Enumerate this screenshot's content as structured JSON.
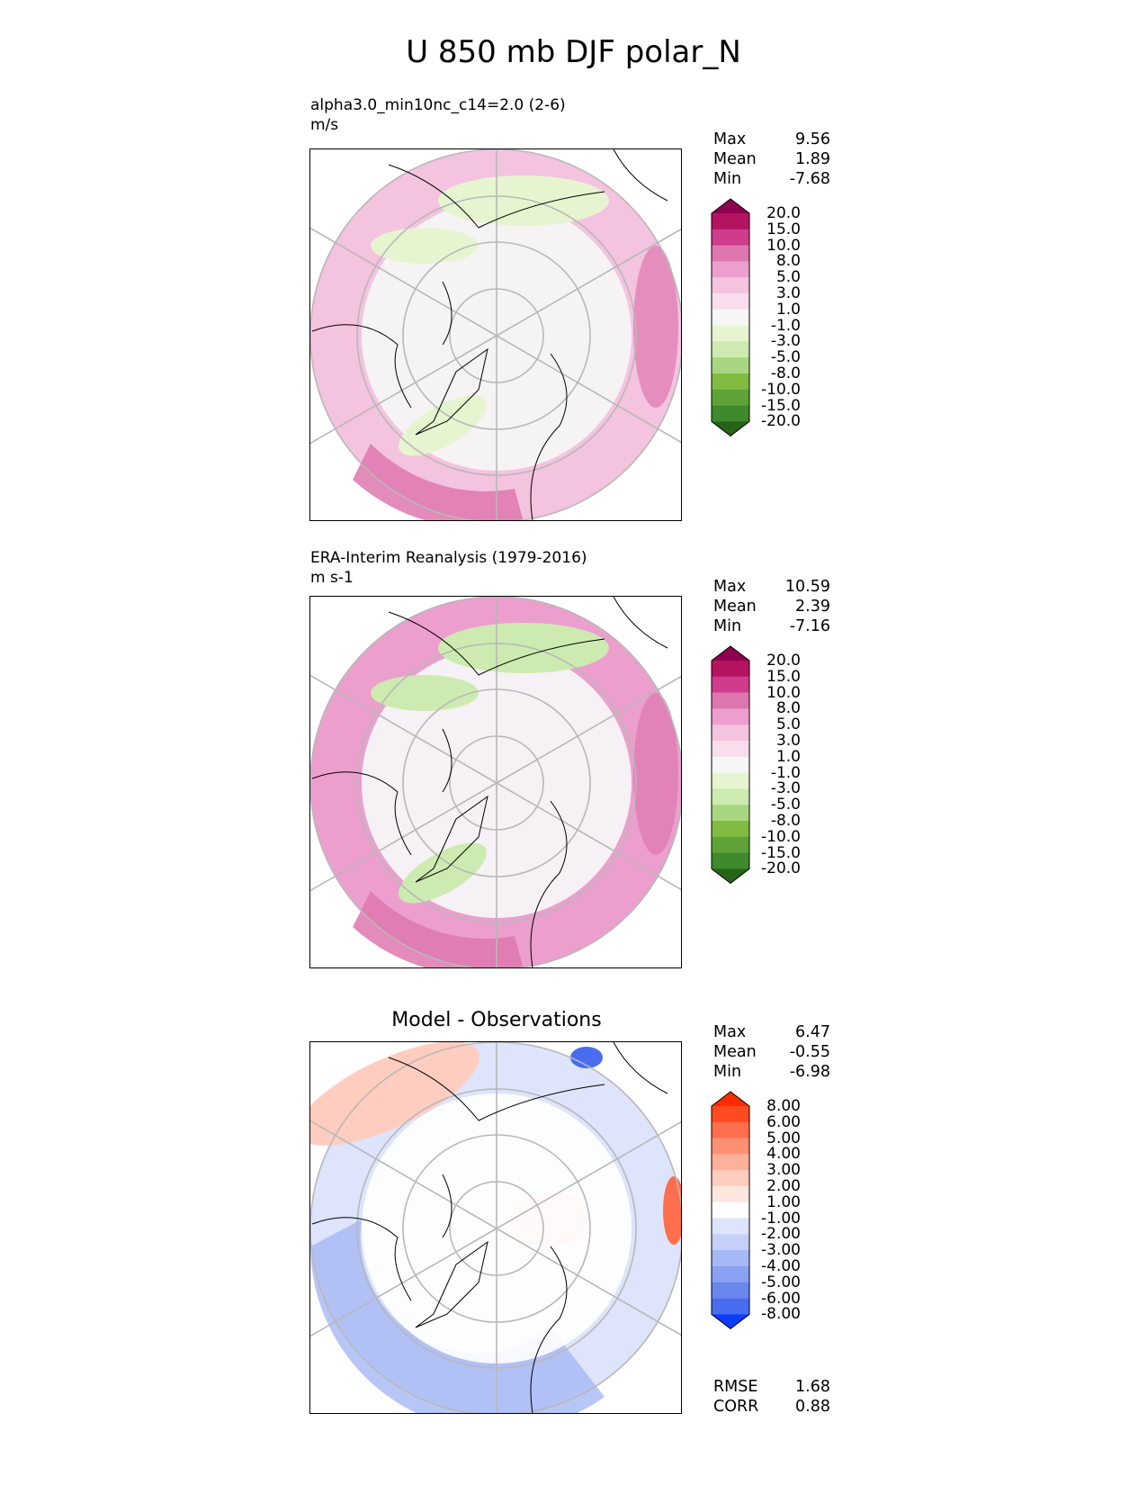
{
  "figure": {
    "title": "U 850 mb DJF polar_N"
  },
  "chart_data": [
    {
      "type": "heatmap",
      "projection": "north-polar-stereographic",
      "title": "alpha3.0_min10nc_c14=2.0 (2-6)",
      "units": "m/s",
      "stats": {
        "Max": "9.56",
        "Mean": "1.89",
        "Min": "-7.68"
      },
      "colorbar": {
        "levels": [
          "20.0",
          "15.0",
          "10.0",
          "8.0",
          "5.0",
          "3.0",
          "1.0",
          "-1.0",
          "-3.0",
          "-5.0",
          "-8.0",
          "-10.0",
          "-15.0",
          "-20.0"
        ],
        "colors": [
          "#8e0152",
          "#b4135f",
          "#cf3c8b",
          "#de77ae",
          "#ec9fcd",
          "#f4c3df",
          "#f8deec",
          "#f6f6f6",
          "#e6f5d0",
          "#cdebb0",
          "#a8d680",
          "#7fbc41",
          "#5ea238",
          "#3e8a2c",
          "#276419"
        ]
      },
      "regions": {
        "outer_band_fill": "#f4c3df",
        "inner_disk_fill": "#f6f6f6",
        "green_patches_fill": "#e6f5d0",
        "strong_pink_fill": "#de77ae"
      }
    },
    {
      "type": "heatmap",
      "projection": "north-polar-stereographic",
      "title": "ERA-Interim Reanalysis (1979-2016)",
      "units": "m s-1",
      "stats": {
        "Max": "10.59",
        "Mean": "2.39",
        "Min": "-7.16"
      },
      "colorbar": {
        "levels": [
          "20.0",
          "15.0",
          "10.0",
          "8.0",
          "5.0",
          "3.0",
          "1.0",
          "-1.0",
          "-3.0",
          "-5.0",
          "-8.0",
          "-10.0",
          "-15.0",
          "-20.0"
        ],
        "colors": [
          "#8e0152",
          "#b4135f",
          "#cf3c8b",
          "#de77ae",
          "#ec9fcd",
          "#f4c3df",
          "#f8deec",
          "#f6f6f6",
          "#e6f5d0",
          "#cdebb0",
          "#a8d680",
          "#7fbc41",
          "#5ea238",
          "#3e8a2c",
          "#276419"
        ]
      },
      "regions": {
        "outer_band_fill": "#ec9fcd",
        "inner_disk_fill": "#f6f6f6",
        "green_patches_fill": "#cdebb0",
        "strong_pink_fill": "#de77ae"
      }
    },
    {
      "type": "heatmap",
      "projection": "north-polar-stereographic",
      "title": "Model - Observations",
      "stats": {
        "Max": "6.47",
        "Mean": "-0.55",
        "Min": "-6.98"
      },
      "extra_stats": {
        "RMSE": "1.68",
        "CORR": "0.88"
      },
      "colorbar": {
        "levels": [
          "8.00",
          "6.00",
          "5.00",
          "4.00",
          "3.00",
          "2.00",
          "1.00",
          "-1.00",
          "-2.00",
          "-3.00",
          "-4.00",
          "-5.00",
          "-6.00",
          "-8.00"
        ],
        "colors": [
          "#ff2a00",
          "#ff4b1f",
          "#ff6e4d",
          "#ff8f73",
          "#ffb09b",
          "#ffcdc0",
          "#ffe6df",
          "#ffffff",
          "#dde4fb",
          "#c4d0f8",
          "#a6b8f5",
          "#8aa1f1",
          "#6a87ee",
          "#4a6df0",
          "#0a3cff"
        ]
      },
      "regions": {
        "outer_band_fill": "#dde4fb",
        "inner_disk_fill": "#ffffff",
        "positive_patches_fill": "#ffcdc0",
        "negative_strong_fill": "#a6b8f5"
      }
    }
  ]
}
